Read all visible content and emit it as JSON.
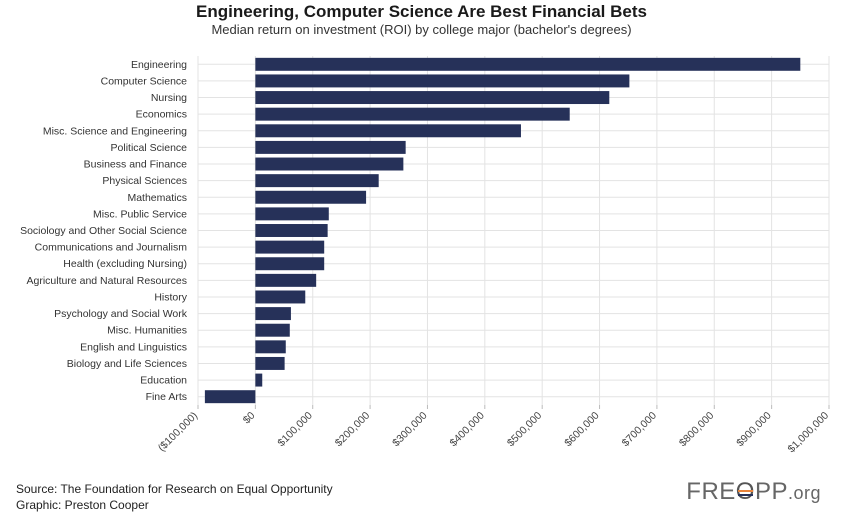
{
  "title": "Engineering, Computer Science Are Best Financial Bets",
  "subtitle": "Median return on investment (ROI) by college major (bachelor's degrees)",
  "footer": {
    "source": "Source: The Foundation for Research on Equal Opportunity",
    "graphic": "Graphic: Preston Cooper"
  },
  "logo": {
    "part1": "FRE",
    "part2": "O",
    "part3": "PP",
    "part4": ".org"
  },
  "colors": {
    "bar": "#263159",
    "grid": "#e3e3e3",
    "stripe_orange": "#e8833a",
    "stripe_blue": "#263159"
  },
  "chart_data": {
    "type": "bar",
    "orientation": "horizontal",
    "title": "Engineering, Computer Science Are Best Financial Bets",
    "subtitle": "Median return on investment (ROI) by college major (bachelor's degrees)",
    "categories": [
      "Engineering",
      "Computer Science",
      "Nursing",
      "Economics",
      "Misc. Science and Engineering",
      "Political Science",
      "Business and Finance",
      "Physical Sciences",
      "Mathematics",
      "Misc. Public Service",
      "Sociology and Other Social Science",
      "Communications and Journalism",
      "Health (excluding Nursing)",
      "Agriculture and Natural Resources",
      "History",
      "Psychology and Social Work",
      "Misc. Humanities",
      "English and Linguistics",
      "Biology and Life Sciences",
      "Education",
      "Fine Arts"
    ],
    "values": [
      950000,
      652000,
      617000,
      548000,
      463000,
      262000,
      258000,
      215000,
      193000,
      128000,
      126000,
      120000,
      120000,
      106000,
      87000,
      62000,
      60000,
      53000,
      51000,
      12000,
      -88000
    ],
    "xlim": [
      -100000,
      1000000
    ],
    "ticks": [
      -100000,
      0,
      100000,
      200000,
      300000,
      400000,
      500000,
      600000,
      700000,
      800000,
      900000,
      1000000
    ],
    "tick_labels": [
      "($100,000)",
      "$0",
      "$100,000",
      "$200,000",
      "$300,000",
      "$400,000",
      "$500,000",
      "$600,000",
      "$700,000",
      "$800,000",
      "$900,000",
      "$1,000,000"
    ],
    "xlabel": "",
    "ylabel": "",
    "grid": true
  }
}
